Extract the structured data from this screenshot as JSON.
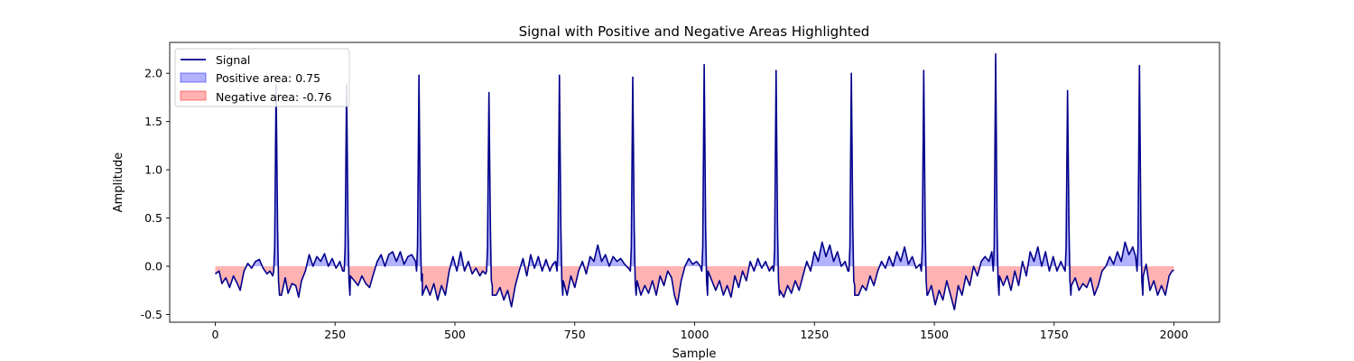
{
  "chart_data": {
    "type": "line",
    "title": "Signal with Positive and Negative Areas Highlighted",
    "xlabel": "Sample",
    "ylabel": "Amplitude",
    "xlim": [
      -95,
      2095
    ],
    "ylim": [
      -0.58,
      2.32
    ],
    "xticks": [
      0,
      250,
      500,
      750,
      1000,
      1250,
      1500,
      1750,
      2000
    ],
    "yticks": [
      -0.5,
      0.0,
      0.5,
      1.0,
      1.5,
      2.0
    ],
    "grid": false,
    "legend_position": "top-left",
    "colors": {
      "signal": "#00008b",
      "positive_fill": "#0000ff",
      "negative_fill": "#ff0000"
    },
    "legend": [
      {
        "label": "Signal",
        "kind": "line"
      },
      {
        "label": "Positive area: 0.75",
        "kind": "positive"
      },
      {
        "label": "Negative area: -0.76",
        "kind": "negative"
      }
    ],
    "signal": {
      "n_samples": 2000,
      "baseline_points": [
        [
          0,
          -0.08
        ],
        [
          8,
          -0.05
        ],
        [
          14,
          -0.18
        ],
        [
          22,
          -0.12
        ],
        [
          30,
          -0.22
        ],
        [
          38,
          -0.1
        ],
        [
          46,
          -0.18
        ],
        [
          52,
          -0.25
        ],
        [
          60,
          -0.05
        ],
        [
          68,
          0.03
        ],
        [
          76,
          -0.02
        ],
        [
          84,
          0.05
        ],
        [
          92,
          0.07
        ],
        [
          100,
          -0.02
        ],
        [
          108,
          -0.08
        ],
        [
          114,
          -0.05
        ],
        [
          120,
          -0.1
        ],
        [
          138,
          -0.3
        ],
        [
          146,
          -0.12
        ],
        [
          152,
          -0.28
        ],
        [
          160,
          -0.18
        ],
        [
          168,
          -0.2
        ],
        [
          174,
          -0.32
        ],
        [
          180,
          -0.15
        ],
        [
          188,
          -0.05
        ],
        [
          196,
          0.12
        ],
        [
          204,
          0.0
        ],
        [
          212,
          0.1
        ],
        [
          220,
          0.05
        ],
        [
          228,
          0.13
        ],
        [
          236,
          0.0
        ],
        [
          244,
          0.08
        ],
        [
          252,
          -0.02
        ],
        [
          260,
          0.05
        ],
        [
          266,
          -0.05
        ],
        [
          282,
          -0.1
        ],
        [
          290,
          -0.15
        ],
        [
          298,
          -0.2
        ],
        [
          306,
          -0.1
        ],
        [
          314,
          -0.18
        ],
        [
          322,
          -0.22
        ],
        [
          330,
          -0.08
        ],
        [
          338,
          0.05
        ],
        [
          346,
          0.12
        ],
        [
          354,
          0.0
        ],
        [
          362,
          0.12
        ],
        [
          370,
          0.15
        ],
        [
          378,
          0.05
        ],
        [
          386,
          0.15
        ],
        [
          394,
          0.02
        ],
        [
          402,
          0.1
        ],
        [
          410,
          0.12
        ],
        [
          418,
          0.05
        ],
        [
          432,
          -0.08
        ],
        [
          440,
          -0.2
        ],
        [
          448,
          -0.3
        ],
        [
          456,
          -0.18
        ],
        [
          464,
          -0.35
        ],
        [
          472,
          -0.2
        ],
        [
          480,
          -0.3
        ],
        [
          488,
          -0.05
        ],
        [
          496,
          0.1
        ],
        [
          504,
          -0.05
        ],
        [
          512,
          0.15
        ],
        [
          520,
          -0.05
        ],
        [
          528,
          0.05
        ],
        [
          536,
          -0.08
        ],
        [
          544,
          -0.02
        ],
        [
          552,
          -0.1
        ],
        [
          558,
          -0.05
        ],
        [
          564,
          -0.08
        ],
        [
          578,
          -0.2
        ],
        [
          586,
          -0.3
        ],
        [
          594,
          -0.22
        ],
        [
          602,
          -0.35
        ],
        [
          610,
          -0.25
        ],
        [
          618,
          -0.42
        ],
        [
          626,
          -0.2
        ],
        [
          634,
          -0.05
        ],
        [
          642,
          0.08
        ],
        [
          650,
          -0.1
        ],
        [
          658,
          0.12
        ],
        [
          666,
          -0.02
        ],
        [
          674,
          0.1
        ],
        [
          682,
          -0.05
        ],
        [
          690,
          0.07
        ],
        [
          698,
          -0.05
        ],
        [
          704,
          0.02
        ],
        [
          710,
          0.05
        ],
        [
          726,
          -0.15
        ],
        [
          734,
          -0.3
        ],
        [
          742,
          -0.1
        ],
        [
          750,
          -0.22
        ],
        [
          758,
          -0.05
        ],
        [
          766,
          0.05
        ],
        [
          774,
          -0.08
        ],
        [
          782,
          0.1
        ],
        [
          790,
          0.05
        ],
        [
          798,
          0.22
        ],
        [
          806,
          0.05
        ],
        [
          814,
          0.12
        ],
        [
          822,
          0.0
        ],
        [
          830,
          0.1
        ],
        [
          838,
          0.05
        ],
        [
          846,
          0.08
        ],
        [
          854,
          0.02
        ],
        [
          862,
          -0.02
        ],
        [
          880,
          -0.15
        ],
        [
          888,
          -0.3
        ],
        [
          896,
          -0.2
        ],
        [
          904,
          -0.28
        ],
        [
          912,
          -0.15
        ],
        [
          920,
          -0.3
        ],
        [
          928,
          -0.1
        ],
        [
          936,
          -0.2
        ],
        [
          944,
          -0.05
        ],
        [
          952,
          -0.12
        ],
        [
          958,
          -0.3
        ],
        [
          964,
          -0.4
        ],
        [
          972,
          -0.15
        ],
        [
          980,
          0.0
        ],
        [
          988,
          0.08
        ],
        [
          996,
          0.02
        ],
        [
          1004,
          0.05
        ],
        [
          1012,
          0.0
        ],
        [
          1028,
          -0.05
        ],
        [
          1036,
          -0.15
        ],
        [
          1044,
          -0.25
        ],
        [
          1052,
          -0.15
        ],
        [
          1060,
          -0.3
        ],
        [
          1068,
          -0.2
        ],
        [
          1076,
          -0.32
        ],
        [
          1084,
          -0.1
        ],
        [
          1092,
          -0.22
        ],
        [
          1100,
          -0.05
        ],
        [
          1108,
          -0.15
        ],
        [
          1116,
          0.05
        ],
        [
          1124,
          -0.05
        ],
        [
          1132,
          0.08
        ],
        [
          1140,
          -0.02
        ],
        [
          1148,
          0.05
        ],
        [
          1156,
          -0.05
        ],
        [
          1162,
          0.0
        ],
        [
          1178,
          -0.25
        ],
        [
          1186,
          -0.32
        ],
        [
          1194,
          -0.2
        ],
        [
          1202,
          -0.28
        ],
        [
          1210,
          -0.15
        ],
        [
          1218,
          -0.25
        ],
        [
          1226,
          -0.1
        ],
        [
          1234,
          0.05
        ],
        [
          1242,
          -0.05
        ],
        [
          1250,
          0.15
        ],
        [
          1258,
          0.05
        ],
        [
          1266,
          0.25
        ],
        [
          1274,
          0.1
        ],
        [
          1282,
          0.22
        ],
        [
          1290,
          0.05
        ],
        [
          1298,
          0.15
        ],
        [
          1306,
          0.0
        ],
        [
          1314,
          0.05
        ],
        [
          1320,
          -0.05
        ],
        [
          1334,
          -0.2
        ],
        [
          1342,
          -0.3
        ],
        [
          1350,
          -0.2
        ],
        [
          1358,
          -0.25
        ],
        [
          1366,
          -0.1
        ],
        [
          1374,
          -0.2
        ],
        [
          1382,
          -0.05
        ],
        [
          1390,
          0.05
        ],
        [
          1398,
          -0.02
        ],
        [
          1406,
          0.1
        ],
        [
          1414,
          0.0
        ],
        [
          1422,
          0.15
        ],
        [
          1430,
          0.05
        ],
        [
          1438,
          0.2
        ],
        [
          1446,
          0.02
        ],
        [
          1454,
          0.1
        ],
        [
          1462,
          -0.02
        ],
        [
          1470,
          0.02
        ],
        [
          1486,
          -0.3
        ],
        [
          1494,
          -0.2
        ],
        [
          1502,
          -0.4
        ],
        [
          1510,
          -0.25
        ],
        [
          1518,
          -0.35
        ],
        [
          1526,
          -0.15
        ],
        [
          1534,
          -0.3
        ],
        [
          1542,
          -0.45
        ],
        [
          1550,
          -0.2
        ],
        [
          1558,
          -0.3
        ],
        [
          1566,
          -0.1
        ],
        [
          1574,
          -0.2
        ],
        [
          1582,
          0.0
        ],
        [
          1590,
          -0.1
        ],
        [
          1598,
          0.05
        ],
        [
          1606,
          0.1
        ],
        [
          1614,
          0.05
        ],
        [
          1620,
          0.15
        ],
        [
          1636,
          -0.1
        ],
        [
          1644,
          -0.2
        ],
        [
          1652,
          -0.1
        ],
        [
          1660,
          -0.25
        ],
        [
          1668,
          -0.05
        ],
        [
          1676,
          -0.2
        ],
        [
          1684,
          0.05
        ],
        [
          1692,
          -0.1
        ],
        [
          1700,
          0.15
        ],
        [
          1708,
          0.05
        ],
        [
          1716,
          0.2
        ],
        [
          1724,
          0.0
        ],
        [
          1732,
          0.15
        ],
        [
          1740,
          -0.05
        ],
        [
          1748,
          0.1
        ],
        [
          1756,
          -0.05
        ],
        [
          1764,
          0.05
        ],
        [
          1770,
          -0.02
        ],
        [
          1786,
          -0.2
        ],
        [
          1794,
          -0.12
        ],
        [
          1802,
          -0.25
        ],
        [
          1810,
          -0.18
        ],
        [
          1818,
          -0.22
        ],
        [
          1826,
          -0.12
        ],
        [
          1834,
          -0.3
        ],
        [
          1842,
          -0.2
        ],
        [
          1850,
          -0.05
        ],
        [
          1858,
          0.0
        ],
        [
          1866,
          0.1
        ],
        [
          1874,
          0.02
        ],
        [
          1882,
          0.15
        ],
        [
          1890,
          0.05
        ],
        [
          1898,
          0.25
        ],
        [
          1906,
          0.12
        ],
        [
          1914,
          0.2
        ],
        [
          1920,
          0.1
        ],
        [
          1936,
          -0.1
        ],
        [
          1942,
          0.02
        ],
        [
          1950,
          -0.25
        ],
        [
          1958,
          -0.15
        ],
        [
          1966,
          -0.3
        ],
        [
          1974,
          -0.2
        ],
        [
          1982,
          -0.3
        ],
        [
          1990,
          -0.1
        ],
        [
          1996,
          -0.05
        ],
        [
          2000,
          -0.04
        ]
      ],
      "r_peaks": [
        [
          127,
          1.88
        ],
        [
          274,
          1.88
        ],
        [
          425,
          1.98
        ],
        [
          571,
          1.8
        ],
        [
          718,
          1.98
        ],
        [
          871,
          1.96
        ],
        [
          1020,
          2.09
        ],
        [
          1170,
          2.03
        ],
        [
          1327,
          2.0
        ],
        [
          1478,
          2.03
        ],
        [
          1628,
          2.2
        ],
        [
          1778,
          1.82
        ],
        [
          1928,
          2.08
        ]
      ]
    }
  }
}
